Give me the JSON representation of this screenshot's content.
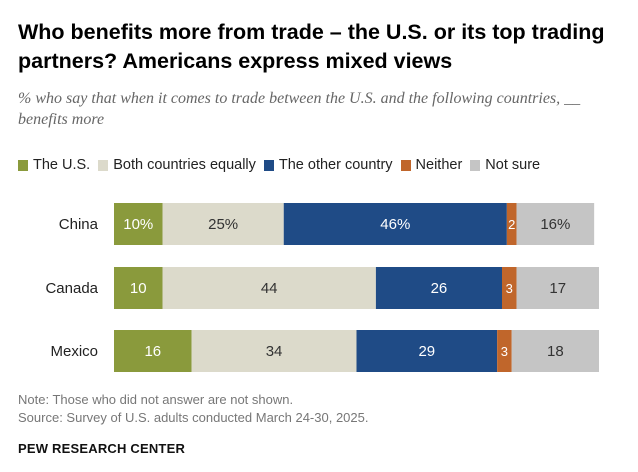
{
  "title": "Who benefits more from trade – the U.S. or its top trading partners? Americans express mixed views",
  "subtitle": "% who say that when it comes to trade between the U.S. and the following countries, __ benefits more",
  "chart_data": {
    "type": "bar",
    "stacked": true,
    "orientation": "horizontal",
    "categories": [
      "China",
      "Canada",
      "Mexico"
    ],
    "series": [
      {
        "name": "The U.S.",
        "color": "#8a9a3c",
        "values": [
          10,
          10,
          16
        ],
        "labels": [
          "10%",
          "10",
          "16"
        ]
      },
      {
        "name": "Both countries equally",
        "color": "#dcdacb",
        "values": [
          25,
          44,
          34
        ],
        "labels": [
          "25%",
          "44",
          "34"
        ]
      },
      {
        "name": "The other country",
        "color": "#1f4b86",
        "values": [
          46,
          26,
          29
        ],
        "labels": [
          "46%",
          "26",
          "29"
        ]
      },
      {
        "name": "Neither",
        "color": "#c0662b",
        "values": [
          2,
          3,
          3
        ],
        "labels": [
          "2",
          "3",
          "3"
        ]
      },
      {
        "name": "Not sure",
        "color": "#c5c5c5",
        "values": [
          16,
          17,
          18
        ],
        "labels": [
          "16%",
          "17",
          "18"
        ]
      }
    ],
    "label_colors": [
      "#ffffff",
      "#333333",
      "#ffffff",
      "#ffffff",
      "#333333"
    ],
    "legend_position": "top-left",
    "grid": false
  },
  "note": "Note: Those who did not answer are not shown.",
  "source": "Source: Survey of U.S. adults conducted March 24-30, 2025.",
  "footer": "PEW RESEARCH CENTER"
}
